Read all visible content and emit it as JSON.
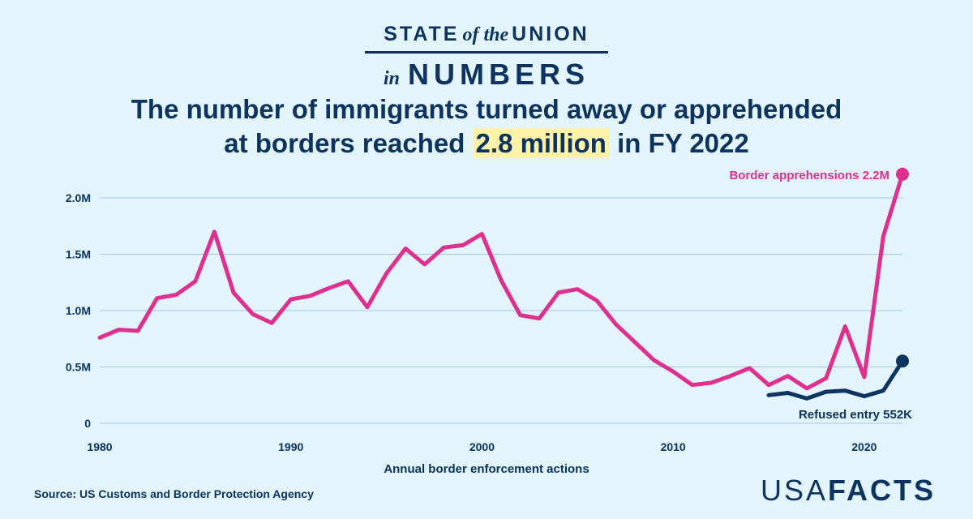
{
  "banner": {
    "state": "STATE",
    "of_the": "of the",
    "union": "UNION",
    "in": "in",
    "numbers": "NUMBERS"
  },
  "headline": {
    "line1": "The number of immigrants turned away or apprehended",
    "line2_pre": "at borders reached",
    "highlight": "2.8 million",
    "line2_post": "in FY 2022"
  },
  "colors": {
    "apprehensions": "#e0308f",
    "refused": "#0d3461",
    "background": "#e3f4fc",
    "highlight": "#fdf2a8",
    "grid": "#9fc7e0"
  },
  "chart_data": {
    "type": "line",
    "xlabel": "Annual border enforcement actions",
    "ylabel": "",
    "x_ticks": [
      1980,
      1990,
      2000,
      2010,
      2020
    ],
    "x_tick_labels": [
      "1980",
      "1990",
      "2000",
      "2010",
      "2020"
    ],
    "y_ticks": [
      0,
      0.5,
      1.0,
      1.5,
      2.0
    ],
    "y_tick_labels": [
      "0",
      "0.5M",
      "1.0M",
      "1.5M",
      "2.0M"
    ],
    "xlim": [
      1980,
      2022
    ],
    "ylim": [
      0,
      2.0
    ],
    "grid": "horizontal",
    "series": [
      {
        "label": "Border apprehensions 2.2M",
        "x": [
          1980,
          1981,
          1982,
          1983,
          1984,
          1985,
          1986,
          1987,
          1988,
          1989,
          1990,
          1991,
          1992,
          1993,
          1994,
          1995,
          1996,
          1997,
          1998,
          1999,
          2000,
          2001,
          2002,
          2003,
          2004,
          2005,
          2006,
          2007,
          2008,
          2009,
          2010,
          2011,
          2012,
          2013,
          2014,
          2015,
          2016,
          2017,
          2018,
          2019,
          2020,
          2021,
          2022
        ],
        "values": [
          0.76,
          0.83,
          0.82,
          1.11,
          1.14,
          1.26,
          1.7,
          1.16,
          0.97,
          0.89,
          1.1,
          1.13,
          1.2,
          1.26,
          1.03,
          1.33,
          1.55,
          1.41,
          1.56,
          1.58,
          1.68,
          1.27,
          0.96,
          0.93,
          1.16,
          1.19,
          1.09,
          0.88,
          0.72,
          0.56,
          0.46,
          0.34,
          0.36,
          0.42,
          0.49,
          0.34,
          0.42,
          0.31,
          0.4,
          0.86,
          0.41,
          1.66,
          2.21
        ]
      },
      {
        "label": "Refused entry 552K",
        "x": [
          2015,
          2016,
          2017,
          2018,
          2019,
          2020,
          2021,
          2022
        ],
        "values": [
          0.25,
          0.27,
          0.22,
          0.28,
          0.29,
          0.24,
          0.29,
          0.552
        ]
      }
    ]
  },
  "source": "Source: US Customs and Border Protection Agency",
  "logo": {
    "light": "USA",
    "bold": "FACTS"
  }
}
